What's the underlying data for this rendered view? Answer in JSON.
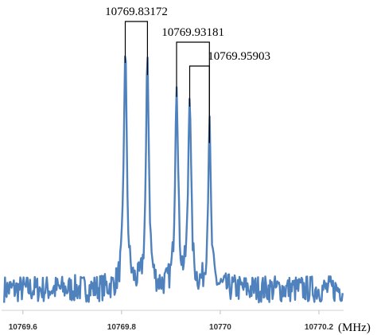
{
  "chart_data": {
    "type": "line",
    "title": "",
    "xlabel": "(MHz)",
    "ylabel": "",
    "xlim": [
      10769.56,
      10770.25
    ],
    "ylim": [
      0,
      1
    ],
    "grid": false,
    "line_color": "#4f81bd",
    "x_ticks": [
      10769.6,
      10769.8,
      10770,
      10770.2
    ],
    "x_tick_labels": [
      "10769.6",
      "10769.8",
      "10770",
      "10770.2"
    ],
    "noise_level": 0.075,
    "peaks": [
      {
        "x": 10769.8075,
        "height": 1.0,
        "width": 0.0035
      },
      {
        "x": 10769.8525,
        "height": 0.95,
        "width": 0.0035
      },
      {
        "x": 10769.9115,
        "height": 0.86,
        "width": 0.0035
      },
      {
        "x": 10769.938,
        "height": 0.82,
        "width": 0.0033
      },
      {
        "x": 10769.978,
        "height": 0.67,
        "width": 0.0033
      }
    ],
    "annotations": [
      {
        "text": "10769.83172",
        "peaks": [
          0,
          1
        ],
        "bracket_level": 1
      },
      {
        "text": "10769.93181",
        "peaks": [
          2,
          4
        ],
        "bracket_level": 2
      },
      {
        "text": "10769.95903",
        "peaks": [
          3,
          4
        ],
        "bracket_level": 3
      }
    ]
  }
}
